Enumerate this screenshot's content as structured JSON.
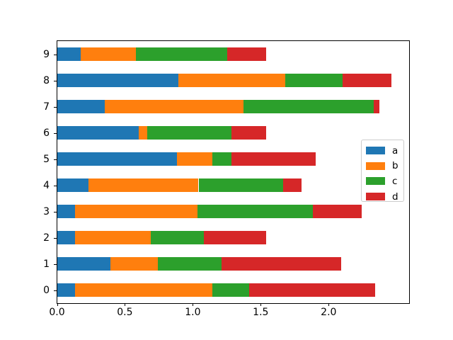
{
  "chart_data": {
    "type": "bar",
    "orientation": "horizontal",
    "stacked": true,
    "title": "",
    "xlabel": "",
    "ylabel": "",
    "categories": [
      "0",
      "1",
      "2",
      "3",
      "4",
      "5",
      "6",
      "7",
      "8",
      "9"
    ],
    "series": [
      {
        "name": "a",
        "color": "#1f77b4",
        "values": [
          0.13,
          0.39,
          0.13,
          0.13,
          0.23,
          0.88,
          0.6,
          0.35,
          0.89,
          0.17
        ]
      },
      {
        "name": "b",
        "color": "#ff7f0e",
        "values": [
          1.01,
          0.35,
          0.56,
          0.9,
          0.81,
          0.26,
          0.06,
          1.02,
          0.79,
          0.41
        ]
      },
      {
        "name": "c",
        "color": "#2ca02c",
        "values": [
          0.27,
          0.47,
          0.39,
          0.85,
          0.62,
          0.14,
          0.62,
          0.96,
          0.42,
          0.67
        ]
      },
      {
        "name": "d",
        "color": "#d62728",
        "values": [
          0.93,
          0.88,
          0.46,
          0.36,
          0.14,
          0.62,
          0.26,
          0.04,
          0.36,
          0.29
        ]
      }
    ],
    "xlim": [
      0,
      2.59
    ],
    "ylim": [
      -0.5,
      9.5
    ],
    "x_ticks": [
      {
        "value": 0.0,
        "label": "0.0"
      },
      {
        "value": 0.5,
        "label": "0.5"
      },
      {
        "value": 1.0,
        "label": "1.0"
      },
      {
        "value": 1.5,
        "label": "1.5"
      },
      {
        "value": 2.0,
        "label": "2.0"
      }
    ],
    "grid": false,
    "legend": {
      "position": "center right",
      "entries": [
        "a",
        "b",
        "c",
        "d"
      ]
    }
  }
}
